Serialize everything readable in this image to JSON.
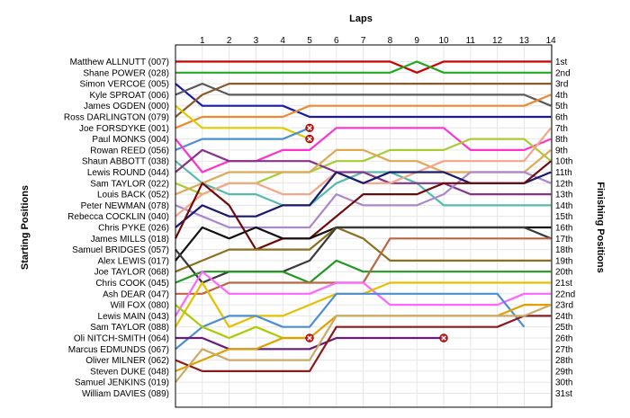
{
  "chart_data": {
    "type": "line",
    "title": "Laps",
    "ylabel_left": "Starting Positions",
    "ylabel_right": "Finishing Positions",
    "x": [
      0,
      1,
      2,
      3,
      4,
      5,
      6,
      7,
      8,
      9,
      10,
      11,
      12,
      13,
      14
    ],
    "x_ticks": [
      "1",
      "2",
      "3",
      "4",
      "5",
      "6",
      "7",
      "8",
      "9",
      "10",
      "11",
      "12",
      "13",
      "14"
    ],
    "start_labels": [
      "Matthew ALLNUTT (007)",
      "Shane POWER (028)",
      "Simon VERCOE (005)",
      "Kyle SPROAT (006)",
      "James OGDEN (000)",
      "Ross DARLINGTON (079)",
      "Joe FORSDYKE (001)",
      "Paul MONKS (004)",
      "Rowan REED (056)",
      "Shaun ABBOTT (038)",
      "Lewis ROUND (044)",
      "Sam TAYLOR (022)",
      "Louis BACK (052)",
      "Peter NEWMAN (078)",
      "Rebecca COCKLIN (040)",
      "Chris PYKE (026)",
      "James MILLS (018)",
      "Samuel BRIDGES (057)",
      "Alex LEWIS (017)",
      "Joe TAYLOR (068)",
      "Chris COOK (045)",
      "Ash DEAR (047)",
      "Will FOX (080)",
      "Lewis MAIN (043)",
      "Sam TAYLOR (088)",
      "Oli NITCH-SMITH (064)",
      "Marcus EDMUNDS (067)",
      "Oliver MILNER (062)",
      "Steven DUKE (048)",
      "Samuel JENKINS (019)",
      "William DAVIES (089)"
    ],
    "finish_labels": [
      "1st",
      "2nd",
      "3rd",
      "4th",
      "5th",
      "6th",
      "7th",
      "8th",
      "9th",
      "10th",
      "11th",
      "12th",
      "13th",
      "14th",
      "15th",
      "16th",
      "17th",
      "18th",
      "19th",
      "20th",
      "21st",
      "22nd",
      "23rd",
      "24th",
      "25th",
      "26th",
      "27th",
      "28th",
      "29th",
      "30th",
      "31st"
    ],
    "series": [
      {
        "color": "#cc0000",
        "positions": [
          1,
          1,
          1,
          1,
          1,
          1,
          1,
          1,
          1,
          2,
          1,
          1,
          1,
          1,
          1
        ]
      },
      {
        "color": "#22aa22",
        "positions": [
          2,
          2,
          2,
          2,
          2,
          2,
          2,
          2,
          2,
          1,
          2,
          2,
          2,
          2,
          2
        ]
      },
      {
        "color": "#1a1aaa",
        "positions": [
          3,
          5,
          5,
          5,
          5,
          6,
          6,
          6,
          6,
          6,
          6,
          6,
          6,
          6,
          6
        ]
      },
      {
        "color": "#8b5a2b",
        "positions": [
          6,
          4,
          3,
          3,
          3,
          3,
          3,
          3,
          3,
          3,
          3,
          3,
          3,
          3,
          3
        ]
      },
      {
        "color": "#5a5a5a",
        "positions": [
          4,
          3,
          4,
          4,
          4,
          4,
          4,
          4,
          4,
          4,
          4,
          4,
          4,
          4,
          5
        ]
      },
      {
        "color": "#ee8833",
        "positions": [
          7,
          6,
          6,
          6,
          6,
          5,
          5,
          5,
          5,
          5,
          5,
          5,
          5,
          5,
          4
        ]
      },
      {
        "color": "#ddcc00",
        "positions": [
          5,
          7,
          7,
          7,
          7,
          8
        ]
      },
      {
        "color": "#4a8fd4",
        "positions": [
          9,
          8,
          8,
          8,
          8,
          7
        ]
      },
      {
        "color": "#ff33cc",
        "positions": [
          8,
          11,
          10,
          10,
          9,
          9,
          7,
          7,
          7,
          7,
          7,
          9,
          9,
          9,
          8
        ]
      },
      {
        "color": "#aacc33",
        "positions": [
          12,
          13,
          12,
          12,
          11,
          11,
          10,
          10,
          9,
          9,
          9,
          8,
          8,
          8,
          10
        ]
      },
      {
        "color": "#55bbaa",
        "positions": [
          10,
          12,
          13,
          13,
          14,
          14,
          12,
          11,
          11,
          12,
          14,
          14,
          14,
          14,
          14
        ]
      },
      {
        "color": "#883388",
        "positions": [
          11,
          9,
          10,
          10,
          10,
          10,
          11,
          11,
          12,
          12,
          12,
          13,
          13,
          13,
          13
        ]
      },
      {
        "color": "#ddaa55",
        "positions": [
          13,
          12,
          11,
          11,
          11,
          11,
          9,
          9,
          10,
          10,
          11,
          11,
          11,
          11,
          9
        ]
      },
      {
        "color": "#aa88cc",
        "positions": [
          14,
          15,
          16,
          16,
          16,
          16,
          13,
          14,
          14,
          14,
          13,
          11,
          11,
          11,
          12
        ]
      },
      {
        "color": "#f4a58a",
        "positions": [
          15,
          13,
          12,
          12,
          13,
          13,
          11,
          12,
          12,
          11,
          10,
          10,
          10,
          10,
          7
        ]
      },
      {
        "color": "#1a1a6e",
        "positions": [
          16,
          14,
          15,
          15,
          14,
          14,
          11,
          12,
          11,
          11,
          11,
          12,
          12,
          12,
          11
        ]
      },
      {
        "color": "#6e0a0a",
        "positions": [
          17,
          12,
          14,
          18,
          17,
          17,
          15,
          13,
          13,
          13,
          12,
          12,
          12,
          12,
          10
        ]
      },
      {
        "color": "#111111",
        "positions": [
          19,
          16,
          17,
          16,
          17,
          17,
          16,
          16,
          16,
          16,
          16,
          16,
          16,
          16,
          16
        ]
      },
      {
        "color": "#8b7020",
        "positions": [
          20,
          19,
          18,
          18,
          18,
          18,
          16,
          17,
          19,
          19,
          19,
          19,
          19,
          19,
          19
        ]
      },
      {
        "color": "#3a3a3a",
        "positions": [
          18,
          21,
          20,
          20,
          20,
          19,
          16,
          16,
          16,
          16,
          16,
          16,
          16,
          16,
          17
        ]
      },
      {
        "color": "#229922",
        "positions": [
          21,
          20,
          20,
          20,
          20,
          21,
          19,
          20,
          20,
          20,
          20,
          20,
          20,
          20,
          20
        ]
      },
      {
        "color": "#bb6644",
        "positions": [
          22,
          22,
          21,
          21,
          21,
          21,
          21,
          21,
          17,
          17,
          17,
          17,
          17,
          17,
          17
        ]
      },
      {
        "color": "#ff66ff",
        "positions": [
          24,
          20,
          22,
          22,
          22,
          22,
          21,
          21,
          23,
          23,
          23,
          23,
          23,
          22,
          22
        ]
      },
      {
        "color": "#e6c000",
        "positions": [
          25,
          21,
          25,
          24,
          24,
          23,
          22,
          22,
          21,
          21,
          21,
          21,
          21,
          21,
          21
        ]
      },
      {
        "color": "#4a8fd4",
        "positions": [
          27,
          25,
          24,
          24,
          25,
          25,
          22,
          22,
          22,
          22,
          22,
          22,
          22,
          25
        ]
      },
      {
        "color": "#aacc00",
        "positions": [
          23,
          25,
          26,
          25,
          26,
          26
        ]
      },
      {
        "color": "#6a1a7a",
        "positions": [
          26,
          26,
          27,
          27,
          27,
          27,
          26,
          26,
          26,
          26,
          26
        ]
      },
      {
        "color": "#e0a000",
        "positions": [
          29,
          28,
          27,
          27,
          26,
          26,
          24,
          24,
          24,
          24,
          24,
          24,
          24,
          23,
          23
        ]
      },
      {
        "color": "#8b1a1a",
        "positions": [
          28,
          29,
          29,
          29,
          29,
          29,
          25,
          25,
          25,
          25,
          25,
          25,
          25,
          24,
          24
        ]
      },
      {
        "color": "#ccaa66",
        "positions": [
          30,
          27,
          28,
          28,
          28,
          28,
          24,
          24,
          24,
          24,
          24,
          24,
          24,
          24,
          23
        ]
      }
    ],
    "retirements": [
      {
        "lap": 5,
        "position": 7
      },
      {
        "lap": 5,
        "position": 8
      },
      {
        "lap": 5,
        "position": 26
      },
      {
        "lap": 10,
        "position": 26
      }
    ],
    "ylim": [
      1,
      31
    ],
    "grid": true
  }
}
